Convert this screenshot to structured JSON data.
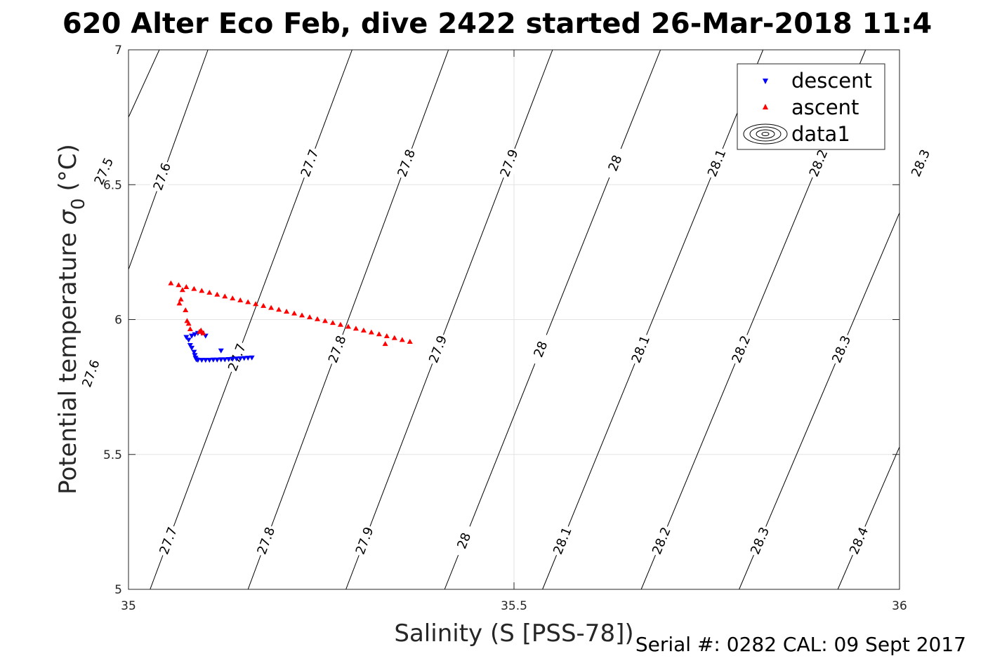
{
  "chart_data": {
    "type": "scatter",
    "title": "620 Alter Eco Feb, dive 2422 started 26-Mar-2018 11:4",
    "xlabel": "Salinity (S [PSS-78])",
    "ylabel": "Potential temperature",
    "ylabel_sigma": "σ",
    "ylabel_subscript": "0",
    "ylabel_unit": "(°C)",
    "footer": "Serial #: 0282  CAL: 09 Sept 2017",
    "xlim": [
      35,
      36
    ],
    "ylim": [
      5,
      7
    ],
    "xticks": [
      35,
      35.5,
      36
    ],
    "xtick_labels": [
      "35",
      "35.5",
      "36"
    ],
    "yticks": [
      5,
      5.5,
      6,
      6.5,
      7
    ],
    "ytick_labels": [
      "5",
      "5.5",
      "6",
      "6.5",
      "7"
    ],
    "grid": true,
    "legend_position": "top-right",
    "legend": [
      "descent",
      "ascent",
      "data1"
    ],
    "series": [
      {
        "name": "descent",
        "marker": "triangle-down",
        "color": "#0000ff",
        "points": [
          [
            35.075,
            5.935
          ],
          [
            35.078,
            5.925
          ],
          [
            35.082,
            5.94
          ],
          [
            35.086,
            5.945
          ],
          [
            35.09,
            5.95
          ],
          [
            35.095,
            5.95
          ],
          [
            35.1,
            5.94
          ],
          [
            35.12,
            5.885
          ],
          [
            35.08,
            5.905
          ],
          [
            35.082,
            5.895
          ],
          [
            35.085,
            5.88
          ],
          [
            35.086,
            5.868
          ],
          [
            35.087,
            5.858
          ],
          [
            35.088,
            5.852
          ],
          [
            35.09,
            5.85
          ],
          [
            35.095,
            5.85
          ],
          [
            35.1,
            5.85
          ],
          [
            35.105,
            5.85
          ],
          [
            35.11,
            5.851
          ],
          [
            35.115,
            5.851
          ],
          [
            35.12,
            5.852
          ],
          [
            35.125,
            5.852
          ],
          [
            35.13,
            5.853
          ],
          [
            35.135,
            5.854
          ],
          [
            35.14,
            5.855
          ],
          [
            35.145,
            5.856
          ],
          [
            35.15,
            5.857
          ],
          [
            35.155,
            5.858
          ],
          [
            35.16,
            5.859
          ]
        ]
      },
      {
        "name": "ascent",
        "marker": "triangle-up",
        "color": "#ff0000",
        "points": [
          [
            35.068,
            6.075
          ],
          [
            35.066,
            6.06
          ],
          [
            35.07,
            6.11
          ],
          [
            35.074,
            6.035
          ],
          [
            35.076,
            5.995
          ],
          [
            35.078,
            5.985
          ],
          [
            35.08,
            5.965
          ],
          [
            35.092,
            5.955
          ],
          [
            35.094,
            5.96
          ],
          [
            35.097,
            5.95
          ],
          [
            35.055,
            6.135
          ],
          [
            35.065,
            6.128
          ],
          [
            35.075,
            6.121
          ],
          [
            35.085,
            6.114
          ],
          [
            35.095,
            6.107
          ],
          [
            35.105,
            6.1
          ],
          [
            35.115,
            6.093
          ],
          [
            35.125,
            6.086
          ],
          [
            35.135,
            6.079
          ],
          [
            35.145,
            6.072
          ],
          [
            35.155,
            6.065
          ],
          [
            35.165,
            6.058
          ],
          [
            35.175,
            6.051
          ],
          [
            35.185,
            6.044
          ],
          [
            35.195,
            6.037
          ],
          [
            35.205,
            6.03
          ],
          [
            35.215,
            6.023
          ],
          [
            35.225,
            6.016
          ],
          [
            35.235,
            6.009
          ],
          [
            35.245,
            6.002
          ],
          [
            35.255,
            5.995
          ],
          [
            35.265,
            5.988
          ],
          [
            35.275,
            5.981
          ],
          [
            35.285,
            5.974
          ],
          [
            35.295,
            5.967
          ],
          [
            35.305,
            5.96
          ],
          [
            35.315,
            5.953
          ],
          [
            35.325,
            5.946
          ],
          [
            35.335,
            5.939
          ],
          [
            35.345,
            5.932
          ],
          [
            35.355,
            5.925
          ],
          [
            35.365,
            5.918
          ],
          [
            35.333,
            5.91
          ]
        ]
      }
    ],
    "contours": {
      "name": "data1",
      "color": "#000000",
      "levels": [
        {
          "value": 27.5,
          "label": "27.5",
          "s_at_t5": 34.72,
          "s_at_t7": 35.04,
          "label_at": [
            [
              35.035,
              6.55
            ]
          ]
        },
        {
          "value": 27.6,
          "label": "27.6",
          "s_at_t5": 34.85,
          "s_at_t7": 35.103,
          "label_at": [
            [
              35.155,
              6.53
            ],
            [
              35.035,
              5.8
            ]
          ]
        },
        {
          "value": 27.7,
          "label": "27.7",
          "s_at_t5": 35.028,
          "s_at_t7": 35.29,
          "label_at": [
            [
              35.285,
              6.58
            ],
            [
              35.168,
              5.86
            ],
            [
              35.058,
              5.18
            ]
          ]
        },
        {
          "value": 27.8,
          "label": "27.8",
          "s_at_t5": 35.155,
          "s_at_t7": 35.415,
          "label_at": [
            [
              35.41,
              6.58
            ],
            [
              35.295,
              5.89
            ],
            [
              35.185,
              5.18
            ]
          ]
        },
        {
          "value": 27.9,
          "label": "27.9",
          "s_at_t5": 35.282,
          "s_at_t7": 35.55,
          "label_at": [
            [
              35.54,
              6.58
            ],
            [
              35.415,
              5.89
            ],
            [
              35.31,
              5.18
            ]
          ]
        },
        {
          "value": 28,
          "label": "28",
          "s_at_t5": 35.41,
          "s_at_t7": 35.69,
          "label_at": [
            [
              35.66,
              6.58
            ],
            [
              35.545,
              5.89
            ],
            [
              35.435,
              5.18
            ]
          ]
        },
        {
          "value": 28.1,
          "label": "28.1",
          "s_at_t5": 35.537,
          "s_at_t7": 35.823,
          "label_at": [
            [
              35.79,
              6.58
            ],
            [
              35.67,
              5.89
            ],
            [
              35.565,
              5.18
            ]
          ]
        },
        {
          "value": 28.2,
          "label": "28.2",
          "s_at_t5": 35.665,
          "s_at_t7": 35.956,
          "label_at": [
            [
              35.915,
              6.58
            ],
            [
              35.8,
              5.89
            ],
            [
              35.69,
              5.18
            ]
          ]
        },
        {
          "value": 28.3,
          "label": "28.3",
          "s_at_t5": 35.792,
          "s_at_t7": 36.09,
          "label_at": [
            [
              36.055,
              6.58
            ],
            [
              35.925,
              5.89
            ],
            [
              35.815,
              5.18
            ]
          ]
        },
        {
          "value": 28.4,
          "label": "28.4",
          "s_at_t5": 35.92,
          "s_at_t7": 36.223,
          "label_at": [
            [
              35.945,
              5.18
            ]
          ]
        }
      ]
    }
  }
}
